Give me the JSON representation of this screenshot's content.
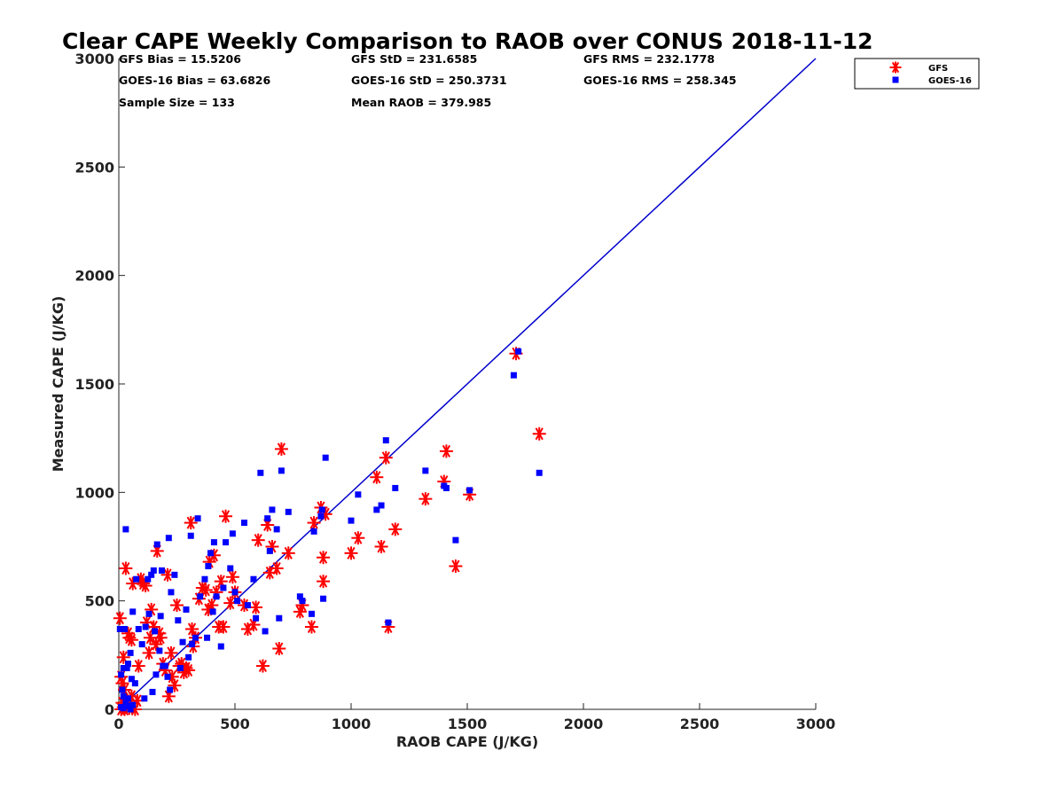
{
  "chart_data": {
    "type": "scatter",
    "title": "Clear CAPE Weekly Comparison to RAOB over CONUS 2018-11-12",
    "xlabel": "RAOB CAPE (J/KG)",
    "ylabel": "Measured CAPE (J/KG)",
    "xlim": [
      0,
      3000
    ],
    "ylim": [
      0,
      3000
    ],
    "xticks": [
      0,
      500,
      1000,
      1500,
      2000,
      2500,
      3000
    ],
    "yticks": [
      0,
      500,
      1000,
      1500,
      2000,
      2500,
      3000
    ],
    "grid": false,
    "legend_position": "top-right",
    "reference_line": {
      "x": [
        0,
        3000
      ],
      "y": [
        0,
        3000
      ],
      "color": "#0000cc"
    },
    "stats": [
      [
        "GFS Bias = 15.5206",
        "GFS StD = 231.6585",
        "GFS RMS = 232.1778"
      ],
      [
        "GOES-16 Bias = 63.6826",
        "GOES-16 StD = 250.3731",
        "GOES-16 RMS = 258.345"
      ],
      [
        "Sample Size = 133",
        "Mean RAOB = 379.985",
        ""
      ]
    ],
    "series": [
      {
        "name": "GFS",
        "marker": "asterisk",
        "color": "#ff0000",
        "points": [
          [
            5,
            420
          ],
          [
            10,
            150
          ],
          [
            15,
            120
          ],
          [
            20,
            240
          ],
          [
            25,
            90
          ],
          [
            30,
            650
          ],
          [
            40,
            350
          ],
          [
            45,
            330
          ],
          [
            55,
            320
          ],
          [
            60,
            580
          ],
          [
            70,
            0
          ],
          [
            80,
            40
          ],
          [
            85,
            200
          ],
          [
            95,
            600
          ],
          [
            105,
            580
          ],
          [
            115,
            570
          ],
          [
            120,
            400
          ],
          [
            130,
            260
          ],
          [
            135,
            330
          ],
          [
            140,
            460
          ],
          [
            150,
            380
          ],
          [
            160,
            300
          ],
          [
            165,
            730
          ],
          [
            175,
            350
          ],
          [
            180,
            330
          ],
          [
            190,
            210
          ],
          [
            200,
            180
          ],
          [
            210,
            620
          ],
          [
            215,
            60
          ],
          [
            225,
            260
          ],
          [
            230,
            150
          ],
          [
            240,
            110
          ],
          [
            250,
            480
          ],
          [
            260,
            200
          ],
          [
            270,
            210
          ],
          [
            280,
            170
          ],
          [
            290,
            190
          ],
          [
            300,
            180
          ],
          [
            310,
            860
          ],
          [
            315,
            370
          ],
          [
            320,
            290
          ],
          [
            330,
            330
          ],
          [
            345,
            510
          ],
          [
            360,
            560
          ],
          [
            375,
            550
          ],
          [
            385,
            460
          ],
          [
            390,
            680
          ],
          [
            400,
            480
          ],
          [
            410,
            710
          ],
          [
            420,
            540
          ],
          [
            430,
            380
          ],
          [
            440,
            590
          ],
          [
            450,
            380
          ],
          [
            460,
            890
          ],
          [
            480,
            490
          ],
          [
            490,
            610
          ],
          [
            500,
            540
          ],
          [
            540,
            480
          ],
          [
            555,
            370
          ],
          [
            580,
            390
          ],
          [
            590,
            470
          ],
          [
            600,
            780
          ],
          [
            620,
            200
          ],
          [
            640,
            850
          ],
          [
            650,
            630
          ],
          [
            660,
            750
          ],
          [
            680,
            650
          ],
          [
            690,
            280
          ],
          [
            700,
            1200
          ],
          [
            730,
            720
          ],
          [
            780,
            450
          ],
          [
            790,
            480
          ],
          [
            830,
            380
          ],
          [
            840,
            860
          ],
          [
            870,
            930
          ],
          [
            880,
            590
          ],
          [
            880,
            700
          ],
          [
            890,
            900
          ],
          [
            1000,
            720
          ],
          [
            1030,
            790
          ],
          [
            1110,
            1070
          ],
          [
            1130,
            750
          ],
          [
            1150,
            1160
          ],
          [
            1160,
            380
          ],
          [
            1190,
            830
          ],
          [
            1320,
            970
          ],
          [
            1400,
            1050
          ],
          [
            1410,
            1190
          ],
          [
            1450,
            660
          ],
          [
            1510,
            990
          ],
          [
            1710,
            1640
          ],
          [
            1810,
            1270
          ],
          [
            10,
            0
          ],
          [
            20,
            10
          ],
          [
            30,
            20
          ],
          [
            35,
            40
          ],
          [
            45,
            5
          ],
          [
            55,
            60
          ],
          [
            25,
            0
          ],
          [
            15,
            30
          ]
        ]
      },
      {
        "name": "GOES-16",
        "marker": "square",
        "color": "#0000ff",
        "points": [
          [
            5,
            370
          ],
          [
            10,
            160
          ],
          [
            15,
            90
          ],
          [
            20,
            190
          ],
          [
            25,
            370
          ],
          [
            30,
            830
          ],
          [
            35,
            190
          ],
          [
            40,
            210
          ],
          [
            50,
            260
          ],
          [
            55,
            140
          ],
          [
            60,
            450
          ],
          [
            70,
            120
          ],
          [
            75,
            600
          ],
          [
            85,
            370
          ],
          [
            100,
            300
          ],
          [
            110,
            50
          ],
          [
            115,
            380
          ],
          [
            125,
            600
          ],
          [
            130,
            440
          ],
          [
            140,
            620
          ],
          [
            145,
            80
          ],
          [
            150,
            640
          ],
          [
            155,
            360
          ],
          [
            160,
            160
          ],
          [
            165,
            760
          ],
          [
            175,
            270
          ],
          [
            180,
            430
          ],
          [
            185,
            640
          ],
          [
            190,
            200
          ],
          [
            200,
            200
          ],
          [
            210,
            150
          ],
          [
            215,
            790
          ],
          [
            220,
            90
          ],
          [
            225,
            540
          ],
          [
            240,
            620
          ],
          [
            255,
            410
          ],
          [
            265,
            190
          ],
          [
            275,
            310
          ],
          [
            290,
            460
          ],
          [
            300,
            240
          ],
          [
            310,
            800
          ],
          [
            315,
            300
          ],
          [
            330,
            330
          ],
          [
            340,
            880
          ],
          [
            350,
            520
          ],
          [
            370,
            600
          ],
          [
            380,
            330
          ],
          [
            385,
            660
          ],
          [
            395,
            720
          ],
          [
            405,
            450
          ],
          [
            410,
            770
          ],
          [
            420,
            520
          ],
          [
            440,
            290
          ],
          [
            450,
            560
          ],
          [
            460,
            770
          ],
          [
            480,
            650
          ],
          [
            490,
            810
          ],
          [
            500,
            540
          ],
          [
            510,
            500
          ],
          [
            540,
            860
          ],
          [
            555,
            480
          ],
          [
            580,
            600
          ],
          [
            590,
            420
          ],
          [
            610,
            1090
          ],
          [
            630,
            360
          ],
          [
            640,
            880
          ],
          [
            650,
            730
          ],
          [
            660,
            920
          ],
          [
            680,
            830
          ],
          [
            690,
            420
          ],
          [
            700,
            1100
          ],
          [
            730,
            910
          ],
          [
            780,
            520
          ],
          [
            790,
            500
          ],
          [
            830,
            440
          ],
          [
            840,
            820
          ],
          [
            870,
            890
          ],
          [
            875,
            920
          ],
          [
            880,
            510
          ],
          [
            890,
            1160
          ],
          [
            1000,
            870
          ],
          [
            1030,
            990
          ],
          [
            1110,
            920
          ],
          [
            1130,
            940
          ],
          [
            1150,
            1240
          ],
          [
            1160,
            400
          ],
          [
            1190,
            1020
          ],
          [
            1320,
            1100
          ],
          [
            1400,
            1030
          ],
          [
            1410,
            1020
          ],
          [
            1450,
            780
          ],
          [
            1510,
            1010
          ],
          [
            1700,
            1540
          ],
          [
            1720,
            1650
          ],
          [
            1810,
            1090
          ],
          [
            10,
            10
          ],
          [
            20,
            5
          ],
          [
            30,
            30
          ],
          [
            40,
            50
          ],
          [
            50,
            0
          ],
          [
            60,
            20
          ],
          [
            20,
            60
          ],
          [
            35,
            15
          ]
        ]
      }
    ]
  }
}
